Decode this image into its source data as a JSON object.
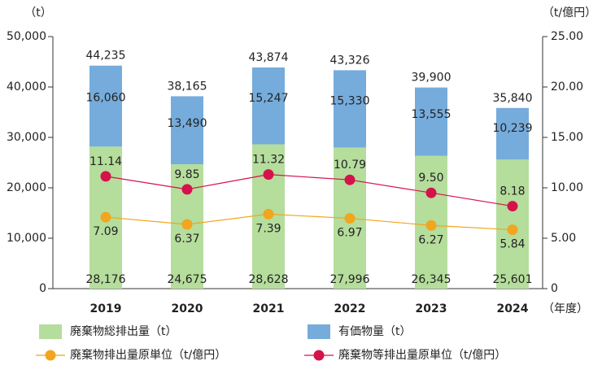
{
  "chart_data": {
    "type": "bar-line",
    "y_axis_label": "（t）",
    "y2_axis_label": "（t/億円）",
    "x_axis_label": "（年度）",
    "categories": [
      "2019",
      "2020",
      "2021",
      "2022",
      "2023",
      "2024"
    ],
    "ylim": [
      0,
      50000
    ],
    "yticks": [
      0,
      {
        "value": 10000,
        "label": "10,000"
      },
      {
        "value": 20000,
        "label": "20,000"
      },
      {
        "value": 30000,
        "label": "30,000"
      },
      {
        "value": 40000,
        "label": "40,000"
      },
      {
        "value": 50000,
        "label": "50,000"
      }
    ],
    "y2lim": [
      0,
      25
    ],
    "y2ticks": [
      0,
      {
        "value": 5,
        "label": "5.00"
      },
      {
        "value": 10,
        "label": "10.00"
      },
      {
        "value": 15,
        "label": "15.00"
      },
      {
        "value": 20,
        "label": "20.00"
      },
      {
        "value": 25,
        "label": "25.00"
      }
    ],
    "series": [
      {
        "name": "廃棄物総排出量（t）",
        "type": "bar",
        "color": "#b5dd9c",
        "values": [
          28176,
          24675,
          28628,
          27996,
          26345,
          25601
        ],
        "value_labels": [
          "28,176",
          "24,675",
          "28,628",
          "27,996",
          "26,345",
          "25,601"
        ]
      },
      {
        "name": "有価物量（t）",
        "type": "bar",
        "color": "#76acdc",
        "values": [
          16060,
          13490,
          15247,
          15330,
          13555,
          10239
        ],
        "value_labels": [
          "16,060",
          "13,490",
          "15,247",
          "15,330",
          "13,555",
          "10,239"
        ]
      },
      {
        "name": "廃棄物排出量原単位（t/億円）",
        "type": "line",
        "axis": "y2",
        "color": "#f2a51f",
        "values": [
          7.09,
          6.37,
          7.39,
          6.97,
          6.27,
          5.84
        ],
        "value_labels": [
          "7.09",
          "6.37",
          "7.39",
          "6.97",
          "6.27",
          "5.84"
        ]
      },
      {
        "name": "廃棄物等排出量原単位（t/億円）",
        "type": "line",
        "axis": "y2",
        "color": "#d5124c",
        "values": [
          11.14,
          9.85,
          11.32,
          10.79,
          9.5,
          8.18
        ],
        "value_labels": [
          "11.14",
          "9.85",
          "11.32",
          "10.79",
          "9.50",
          "8.18"
        ]
      }
    ],
    "totals": [
      44235,
      38165,
      43874,
      43326,
      39900,
      35840
    ],
    "totals_labels": [
      "44,235",
      "38,165",
      "43,874",
      "43,326",
      "39,900",
      "35,840"
    ]
  }
}
